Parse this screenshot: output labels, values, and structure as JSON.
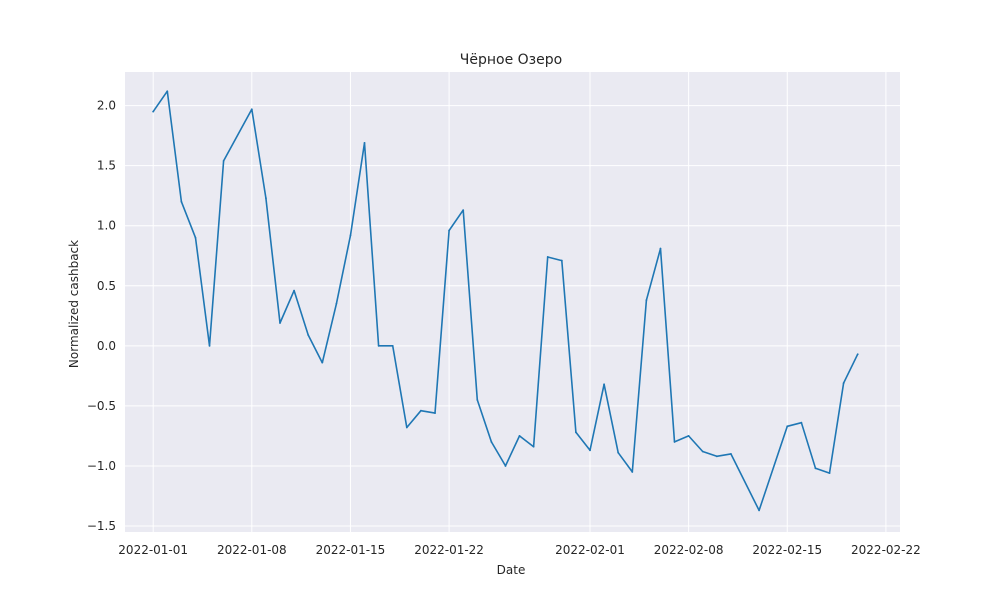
{
  "chart_data": {
    "type": "line",
    "title": "Чёрное Озеро",
    "xlabel": "Date",
    "ylabel": "Normalized cashback",
    "xlim": [
      "2021-12-30",
      "2022-02-23"
    ],
    "ylim": [
      -1.55,
      2.28
    ],
    "x_ticks": [
      {
        "date": "2022-01-01",
        "label": "2022-01-01"
      },
      {
        "date": "2022-01-08",
        "label": "2022-01-08"
      },
      {
        "date": "2022-01-15",
        "label": "2022-01-15"
      },
      {
        "date": "2022-01-22",
        "label": "2022-01-22"
      },
      {
        "date": "2022-02-01",
        "label": "2022-02-01"
      },
      {
        "date": "2022-02-08",
        "label": "2022-02-08"
      },
      {
        "date": "2022-02-15",
        "label": "2022-02-15"
      },
      {
        "date": "2022-02-22",
        "label": "2022-02-22"
      }
    ],
    "y_ticks": [
      {
        "value": 2.0,
        "label": "2.0"
      },
      {
        "value": 1.5,
        "label": "1.5"
      },
      {
        "value": 1.0,
        "label": "1.0"
      },
      {
        "value": 0.5,
        "label": "0.5"
      },
      {
        "value": 0.0,
        "label": "0.0"
      },
      {
        "value": -0.5,
        "label": "−0.5"
      },
      {
        "value": -1.0,
        "label": "−1.0"
      },
      {
        "value": -1.5,
        "label": "−1.5"
      }
    ],
    "grid": true,
    "background": "#eaeaf2",
    "line_color": "#1f77b4",
    "series": [
      {
        "x": [
          "2022-01-01",
          "2022-01-02",
          "2022-01-03",
          "2022-01-04",
          "2022-01-05",
          "2022-01-06",
          "2022-01-08",
          "2022-01-09",
          "2022-01-10",
          "2022-01-11",
          "2022-01-12",
          "2022-01-13",
          "2022-01-14",
          "2022-01-15",
          "2022-01-16",
          "2022-01-17",
          "2022-01-18",
          "2022-01-19",
          "2022-01-20",
          "2022-01-21",
          "2022-01-22",
          "2022-01-23",
          "2022-01-24",
          "2022-01-25",
          "2022-01-26",
          "2022-01-27",
          "2022-01-28",
          "2022-01-29",
          "2022-01-30",
          "2022-01-31",
          "2022-02-01",
          "2022-02-02",
          "2022-02-03",
          "2022-02-04",
          "2022-02-05",
          "2022-02-06",
          "2022-02-07",
          "2022-02-08",
          "2022-02-09",
          "2022-02-10",
          "2022-02-11",
          "2022-02-13",
          "2022-02-15",
          "2022-02-16",
          "2022-02-17",
          "2022-02-18",
          "2022-02-19",
          "2022-02-20"
        ],
        "values": [
          1.95,
          2.12,
          1.2,
          0.9,
          0.0,
          1.54,
          1.97,
          1.23,
          0.19,
          0.46,
          0.09,
          -0.14,
          0.35,
          0.92,
          1.69,
          0.0,
          0.0,
          -0.68,
          -0.54,
          -0.56,
          0.96,
          1.13,
          -0.45,
          -0.8,
          -1.0,
          -0.75,
          -0.84,
          0.74,
          0.71,
          -0.72,
          -0.87,
          -0.32,
          -0.89,
          -1.05,
          0.38,
          0.81,
          -0.8,
          -0.75,
          -0.88,
          -0.92,
          -0.9,
          -1.37,
          -0.67,
          -0.64,
          -1.02,
          -1.06,
          -0.31,
          -0.07
        ]
      }
    ]
  }
}
